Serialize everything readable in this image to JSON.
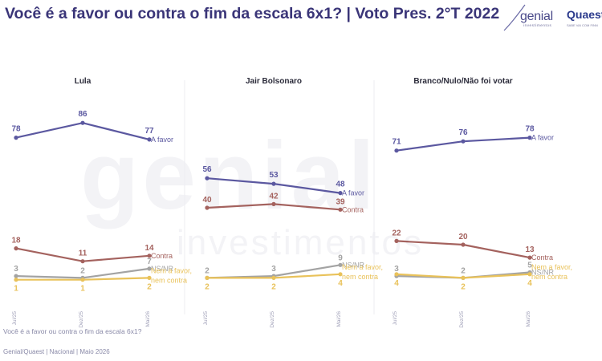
{
  "title": "Você é a favor ou contra o fim da escala 6x1? | Voto Pres. 2°T 2022",
  "logo": {
    "genial": "genial",
    "genial_sub": "investimentos",
    "quaest": "Quaest",
    "quaest_sub": "SABE VAI COM FINN"
  },
  "watermark": {
    "word": "genial",
    "sub": "investimentos"
  },
  "footnote": "Você é a favor ou contra o fim da escala 6x1?",
  "source": "Genial/Quaest | Nacional | Maio 2026",
  "colors": {
    "favor": "#5b58a0",
    "contra": "#a4625e",
    "nsnr": "#a3a3a3",
    "nem": "#e9c25a",
    "title": "#3a3578",
    "tick": "#a0a0b8"
  },
  "chart_data": [
    {
      "type": "line",
      "title": "Lula",
      "x": [
        "Jul/25",
        "Dez/25",
        "Mai/26"
      ],
      "series": [
        {
          "name": "A favor",
          "values": [
            78,
            86,
            77
          ]
        },
        {
          "name": "Contra",
          "values": [
            18,
            11,
            14
          ]
        },
        {
          "name": "NS/NR",
          "values": [
            3,
            2,
            7
          ]
        },
        {
          "name": "Nem a favor, nem contra",
          "values": [
            1,
            1,
            2
          ]
        }
      ],
      "ylim": [
        0,
        100
      ],
      "grid": false,
      "legend": "inline-labels-right"
    },
    {
      "type": "line",
      "title": "Jair Bolsonaro",
      "x": [
        "Jul/25",
        "Dez/25",
        "Mai/26"
      ],
      "series": [
        {
          "name": "A favor",
          "values": [
            56,
            53,
            48
          ]
        },
        {
          "name": "Contra",
          "values": [
            40,
            42,
            39
          ]
        },
        {
          "name": "NS/NR",
          "values": [
            2,
            3,
            9
          ]
        },
        {
          "name": "Nem a favor, nem contra",
          "values": [
            2,
            2,
            4
          ]
        }
      ],
      "ylim": [
        0,
        100
      ],
      "grid": false,
      "legend": "inline-labels-right"
    },
    {
      "type": "line",
      "title": "Branco/Nulo/Não foi votar",
      "x": [
        "Jul/25",
        "Dez/25",
        "Mai/26"
      ],
      "series": [
        {
          "name": "A favor",
          "values": [
            71,
            76,
            78
          ]
        },
        {
          "name": "Contra",
          "values": [
            22,
            20,
            13
          ]
        },
        {
          "name": "NS/NR",
          "values": [
            3,
            2,
            5
          ]
        },
        {
          "name": "Nem a favor, nem contra",
          "values": [
            4,
            2,
            4
          ]
        }
      ],
      "ylim": [
        0,
        100
      ],
      "grid": false,
      "legend": "inline-labels-right"
    }
  ]
}
